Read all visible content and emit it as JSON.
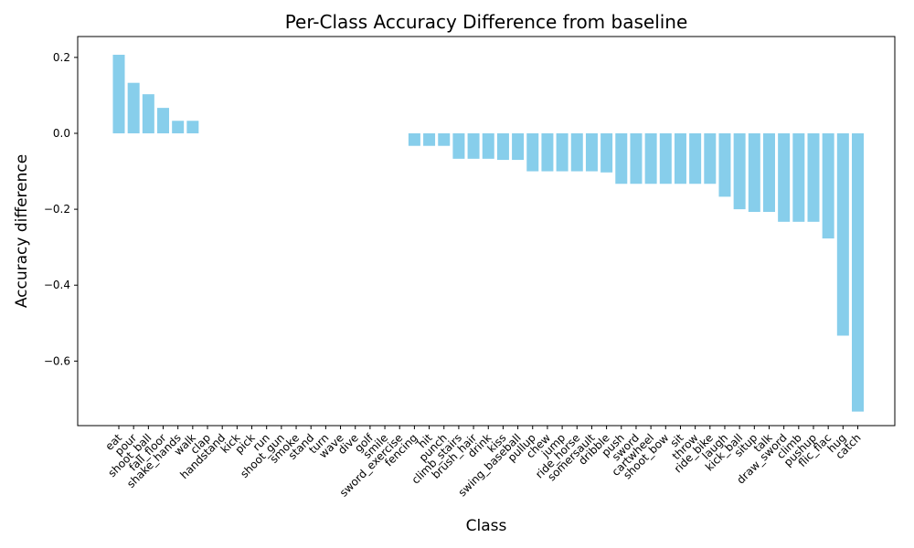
{
  "chart_data": {
    "type": "bar",
    "title": "Per-Class Accuracy Difference from baseline",
    "xlabel": "Class",
    "ylabel": "Accuracy difference",
    "ylim": [
      -0.77,
      0.255
    ],
    "yticks": [
      0.2,
      0.0,
      -0.2,
      -0.4,
      -0.6
    ],
    "ytick_labels": [
      "0.2",
      "0.0",
      "−0.2",
      "−0.4",
      "−0.6"
    ],
    "grid": false,
    "bar_color": "#87CEEB",
    "categories": [
      "eat",
      "pour",
      "shoot_ball",
      "fall_floor",
      "shake_hands",
      "walk",
      "clap",
      "handstand",
      "kick",
      "pick",
      "run",
      "shoot_gun",
      "smoke",
      "stand",
      "turn",
      "wave",
      "dive",
      "golf",
      "smile",
      "sword_exercise",
      "fencing",
      "hit",
      "punch",
      "climb_stairs",
      "brush_hair",
      "drink",
      "kiss",
      "swing_baseball",
      "pullup",
      "chew",
      "jump",
      "ride_horse",
      "somersault",
      "dribble",
      "push",
      "sword",
      "cartwheel",
      "shoot_bow",
      "sit",
      "throw",
      "ride_bike",
      "laugh",
      "kick_ball",
      "situp",
      "talk",
      "draw_sword",
      "climb",
      "pushup",
      "flic_flac",
      "hug",
      "catch"
    ],
    "values": [
      0.207,
      0.133,
      0.103,
      0.067,
      0.033,
      0.033,
      0,
      0,
      0,
      0,
      0,
      0,
      0,
      0,
      0,
      0,
      0,
      0,
      0,
      0,
      -0.033,
      -0.033,
      -0.033,
      -0.067,
      -0.067,
      -0.067,
      -0.07,
      -0.07,
      -0.1,
      -0.1,
      -0.1,
      -0.1,
      -0.1,
      -0.103,
      -0.133,
      -0.133,
      -0.133,
      -0.133,
      -0.133,
      -0.133,
      -0.133,
      -0.167,
      -0.2,
      -0.207,
      -0.207,
      -0.233,
      -0.233,
      -0.233,
      -0.277,
      -0.533,
      -0.733
    ]
  }
}
